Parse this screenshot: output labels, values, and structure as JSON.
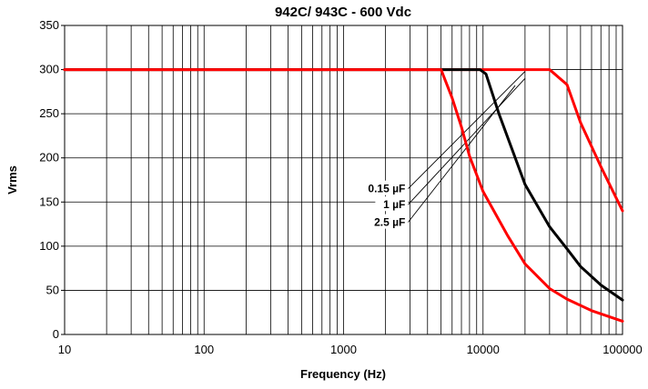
{
  "chart_data": {
    "type": "line",
    "title": "942C/ 943C - 600 Vdc",
    "xlabel": "Frequency (Hz)",
    "ylabel": "Vrms",
    "x_scale": "log",
    "xlim": [
      10,
      100000
    ],
    "ylim": [
      0,
      350
    ],
    "x_ticks": [
      10,
      100,
      1000,
      10000,
      100000
    ],
    "x_tick_labels": [
      "10",
      "100",
      "1000",
      "10000",
      "100000"
    ],
    "y_ticks": [
      0,
      50,
      100,
      150,
      200,
      250,
      300,
      350
    ],
    "y_tick_labels": [
      "0",
      "50",
      "100",
      "150",
      "200",
      "250",
      "300",
      "350"
    ],
    "grid": true,
    "legend": "none",
    "series": [
      {
        "name": "0.15 µF",
        "color": "#ff0000",
        "x": [
          10,
          30000,
          40000,
          50000,
          70000,
          100000
        ],
        "y": [
          300,
          300,
          283,
          240,
          190,
          140
        ]
      },
      {
        "name": "1 µF",
        "color": "#000000",
        "x": [
          10,
          5000,
          9500,
          10500,
          13000,
          20000,
          30000,
          40000,
          50000,
          70000,
          100000
        ],
        "y": [
          300,
          300,
          300,
          295,
          250,
          170,
          122,
          97,
          77,
          56,
          39
        ]
      },
      {
        "name": "2.5 µF",
        "color": "#ff0000",
        "x": [
          10,
          5000,
          6000,
          7000,
          8000,
          10000,
          15000,
          20000,
          30000,
          40000,
          60000,
          100000
        ],
        "y": [
          300,
          300,
          268,
          235,
          202,
          162,
          112,
          80,
          52,
          40,
          27,
          15
        ]
      }
    ],
    "annotations": [
      {
        "label": "0.15 µF",
        "x_from": 2900,
        "y_from": 165,
        "x_to": 20000,
        "y_to": 298
      },
      {
        "label": "1 µF",
        "x_from": 2900,
        "y_from": 147,
        "x_to": 20000,
        "y_to": 290
      },
      {
        "label": "2.5 µF",
        "x_from": 2900,
        "y_from": 127,
        "x_to": 17000,
        "y_to": 282
      }
    ]
  }
}
